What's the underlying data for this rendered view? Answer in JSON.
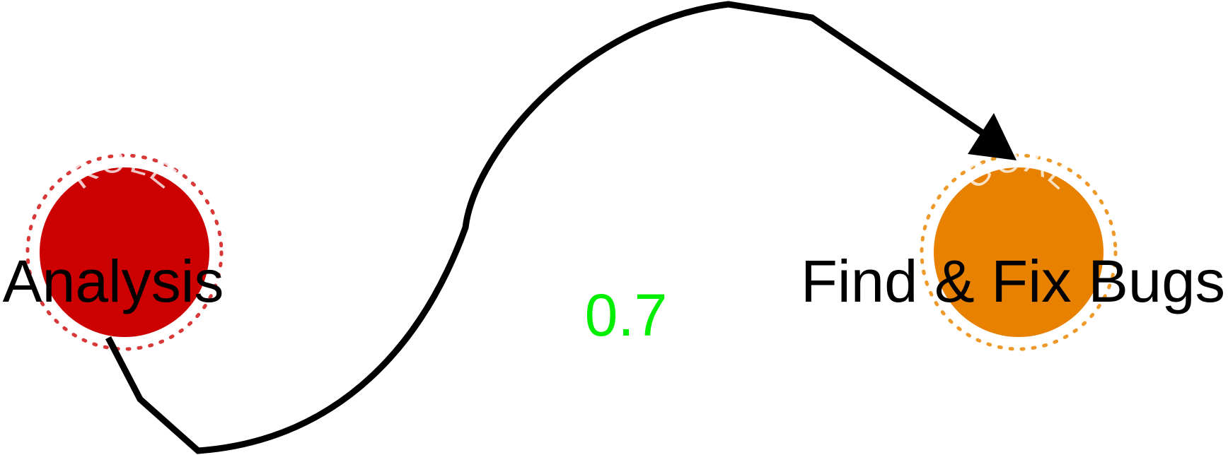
{
  "nodes": {
    "source": {
      "badge": "ROLE",
      "label": "Analysis",
      "color": "#cc0000",
      "dot_color": "#d83838"
    },
    "target": {
      "badge": "GOAL",
      "label": "Find & Fix Bugs",
      "color": "#e88000",
      "dot_color": "#ee9a2a"
    }
  },
  "edge": {
    "weight": "0.7",
    "weight_color": "#00ee00",
    "line_color": "#000000"
  }
}
